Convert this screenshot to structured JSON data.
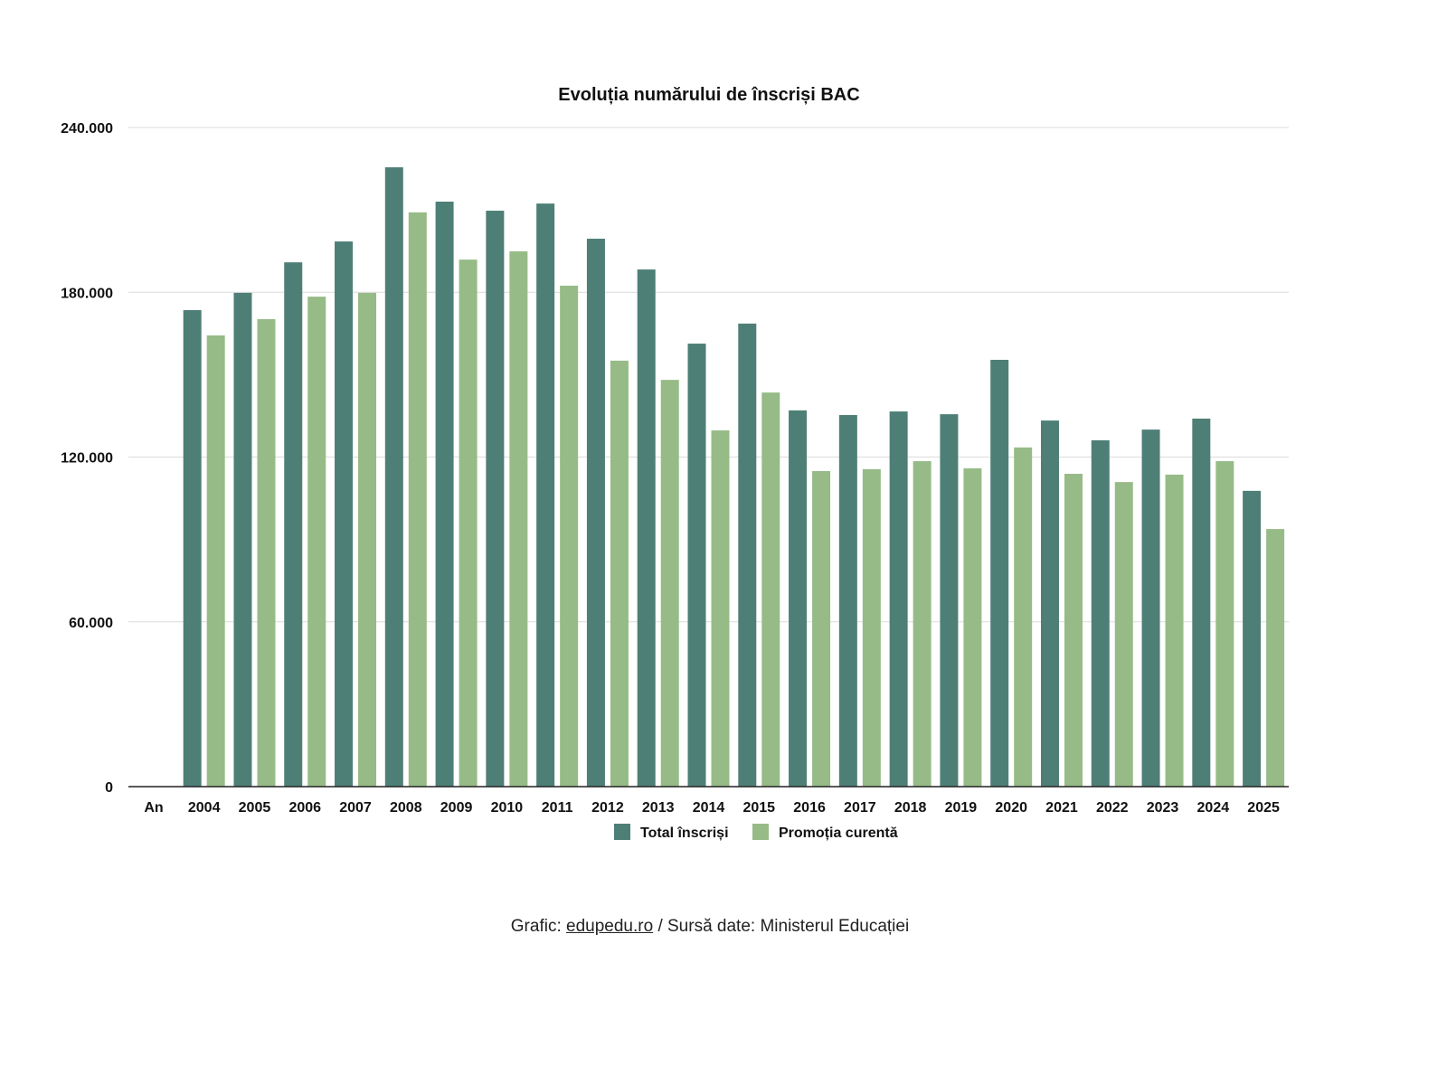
{
  "chart_data": {
    "type": "bar",
    "title": "Evoluția numărului de înscriși BAC",
    "xlabel": "An",
    "ylabel": "",
    "ylim": [
      0,
      240000
    ],
    "yticks": [
      0,
      60000,
      120000,
      180000,
      240000
    ],
    "ytick_labels": [
      "0",
      "60.000",
      "120.000",
      "180.000",
      "240.000"
    ],
    "grid": true,
    "legend_position": "bottom",
    "categories": [
      "2004",
      "2005",
      "2006",
      "2007",
      "2008",
      "2009",
      "2010",
      "2011",
      "2012",
      "2013",
      "2014",
      "2015",
      "2016",
      "2017",
      "2018",
      "2019",
      "2020",
      "2021",
      "2022",
      "2023",
      "2024",
      "2025"
    ],
    "series": [
      {
        "name": "Total înscriși",
        "color": "#4e7f76",
        "values": [
          173500,
          179800,
          190900,
          198500,
          225500,
          213000,
          209700,
          212300,
          199500,
          188300,
          161300,
          168600,
          137000,
          135300,
          136600,
          135600,
          155400,
          133300,
          126100,
          130000,
          134000,
          107700
        ]
      },
      {
        "name": "Promoția curentă",
        "color": "#97bb87",
        "values": [
          164300,
          170200,
          178400,
          179800,
          209100,
          191900,
          194900,
          182400,
          155100,
          148100,
          129700,
          143500,
          114900,
          115600,
          118500,
          115900,
          123500,
          113900,
          110900,
          113600,
          118500,
          93800
        ]
      }
    ]
  },
  "footer": {
    "prefix": "Grafic: ",
    "link": "edupedu.ro",
    "suffix": " / Sursă date: Ministerul Educației"
  }
}
